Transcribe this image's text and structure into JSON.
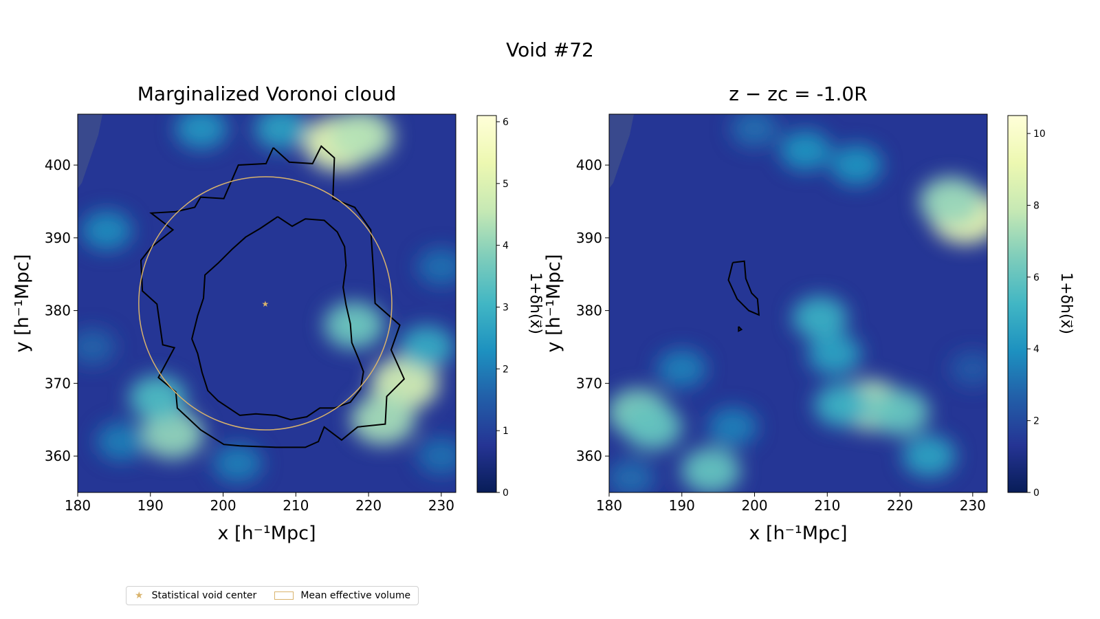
{
  "suptitle": "Void #72",
  "chart_data": [
    {
      "type": "heatmap",
      "title": "Marginalized Voronoi cloud",
      "xlabel": "x [h⁻¹Mpc]",
      "ylabel": "y [h⁻¹Mpc]",
      "xlim": [
        180,
        232
      ],
      "ylim": [
        355,
        407
      ],
      "xticks": [
        180,
        190,
        200,
        210,
        220,
        230
      ],
      "yticks": [
        360,
        370,
        380,
        390,
        400
      ],
      "colorbar": {
        "label": "1+δh(x⃗)",
        "range": [
          0,
          6.1
        ],
        "ticks": [
          0,
          1,
          2,
          3,
          4,
          5,
          6
        ]
      },
      "colormap": [
        "#081d58",
        "#253494",
        "#225ea8",
        "#1d91c0",
        "#41b6c4",
        "#7fcdbb",
        "#c7e9b4",
        "#edf8b1",
        "#ffffd9"
      ],
      "void_center": {
        "x": 205.8,
        "y": 381.0
      },
      "mean_effective_volume": {
        "cx": 205.8,
        "cy": 381.0,
        "r": 17.4
      },
      "hotspots": [
        {
          "x": 216,
          "y": 403,
          "v": 5.2
        },
        {
          "x": 219,
          "y": 404,
          "v": 4.4
        },
        {
          "x": 225,
          "y": 370,
          "v": 4.8
        },
        {
          "x": 222,
          "y": 365,
          "v": 4.2
        },
        {
          "x": 193,
          "y": 363,
          "v": 4.0
        },
        {
          "x": 191,
          "y": 368,
          "v": 3.2
        },
        {
          "x": 218,
          "y": 378,
          "v": 3.6
        },
        {
          "x": 228,
          "y": 375,
          "v": 2.8
        },
        {
          "x": 184,
          "y": 391,
          "v": 2.2
        },
        {
          "x": 197,
          "y": 405,
          "v": 2.4
        },
        {
          "x": 208,
          "y": 405,
          "v": 2.6
        },
        {
          "x": 186,
          "y": 362,
          "v": 2.0
        },
        {
          "x": 230,
          "y": 386,
          "v": 1.8
        },
        {
          "x": 202,
          "y": 359,
          "v": 2.0
        },
        {
          "x": 230,
          "y": 360,
          "v": 1.8
        },
        {
          "x": 182,
          "y": 375,
          "v": 1.6
        }
      ],
      "contours": [
        [
          [
            206.9,
            402.4
          ],
          [
            205.9,
            400.2
          ],
          [
            202.1,
            400.0
          ],
          [
            200.1,
            395.4
          ],
          [
            196.9,
            395.6
          ],
          [
            196.1,
            394.2
          ],
          [
            193.5,
            393.6
          ],
          [
            190.1,
            393.4
          ],
          [
            193.1,
            391.1
          ],
          [
            190.1,
            388.7
          ],
          [
            188.7,
            386.9
          ],
          [
            188.9,
            382.7
          ],
          [
            190.9,
            380.9
          ],
          [
            191.7,
            375.3
          ],
          [
            193.3,
            374.9
          ],
          [
            191.1,
            370.8
          ],
          [
            193.5,
            368.8
          ],
          [
            193.7,
            366.6
          ],
          [
            196.9,
            363.6
          ],
          [
            200.1,
            361.6
          ],
          [
            202.3,
            361.4
          ],
          [
            207.3,
            361.2
          ],
          [
            211.3,
            361.2
          ],
          [
            213.1,
            362.0
          ],
          [
            213.9,
            364.0
          ],
          [
            216.3,
            362.2
          ],
          [
            218.5,
            364.0
          ],
          [
            222.3,
            364.4
          ],
          [
            222.5,
            368.2
          ],
          [
            224.9,
            370.6
          ],
          [
            223.1,
            374.6
          ],
          [
            224.3,
            378.0
          ],
          [
            220.9,
            381.0
          ],
          [
            220.7,
            385.0
          ],
          [
            220.3,
            391.1
          ],
          [
            218.1,
            394.2
          ],
          [
            215.1,
            395.4
          ],
          [
            215.3,
            401.0
          ],
          [
            213.5,
            402.6
          ],
          [
            212.3,
            400.2
          ],
          [
            209.1,
            400.4
          ],
          [
            206.9,
            402.4
          ]
        ],
        [
          [
            207.5,
            392.9
          ],
          [
            205.1,
            391.3
          ],
          [
            203.1,
            390.1
          ],
          [
            201.3,
            388.5
          ],
          [
            199.3,
            386.5
          ],
          [
            197.5,
            384.9
          ],
          [
            197.3,
            381.7
          ],
          [
            196.5,
            379.3
          ],
          [
            195.7,
            376.1
          ],
          [
            196.5,
            374.1
          ],
          [
            197.1,
            371.5
          ],
          [
            197.9,
            369.0
          ],
          [
            199.3,
            367.6
          ],
          [
            201.1,
            366.4
          ],
          [
            202.3,
            365.6
          ],
          [
            204.5,
            365.8
          ],
          [
            207.3,
            365.6
          ],
          [
            209.3,
            365.0
          ],
          [
            211.5,
            365.4
          ],
          [
            213.3,
            366.6
          ],
          [
            215.3,
            366.6
          ],
          [
            217.5,
            367.4
          ],
          [
            218.9,
            369.2
          ],
          [
            219.3,
            371.6
          ],
          [
            218.7,
            373.2
          ],
          [
            217.7,
            375.6
          ],
          [
            217.5,
            378.2
          ],
          [
            216.9,
            380.8
          ],
          [
            216.5,
            383.2
          ],
          [
            216.9,
            386.2
          ],
          [
            216.7,
            388.8
          ],
          [
            215.7,
            390.8
          ],
          [
            213.9,
            392.4
          ],
          [
            211.3,
            392.6
          ],
          [
            209.5,
            391.6
          ],
          [
            207.5,
            392.9
          ]
        ]
      ]
    },
    {
      "type": "heatmap",
      "title": "z − zc = -1.0R",
      "xlabel": "x [h⁻¹Mpc]",
      "ylabel": "y [h⁻¹Mpc]",
      "xlim": [
        180,
        232
      ],
      "ylim": [
        355,
        407
      ],
      "xticks": [
        180,
        190,
        200,
        210,
        220,
        230
      ],
      "yticks": [
        360,
        370,
        380,
        390,
        400
      ],
      "colorbar": {
        "label": "1+δh(x⃗)",
        "range": [
          0,
          10.5
        ],
        "ticks": [
          0,
          2,
          4,
          6,
          8,
          10
        ]
      },
      "colormap": [
        "#081d58",
        "#253494",
        "#225ea8",
        "#1d91c0",
        "#41b6c4",
        "#7fcdbb",
        "#c7e9b4",
        "#edf8b1",
        "#ffffd9"
      ],
      "hotspots": [
        {
          "x": 229,
          "y": 393,
          "v": 9.0
        },
        {
          "x": 227,
          "y": 395,
          "v": 7.0
        },
        {
          "x": 216,
          "y": 367,
          "v": 7.5
        },
        {
          "x": 220,
          "y": 366,
          "v": 6.0
        },
        {
          "x": 212,
          "y": 367,
          "v": 5.0
        },
        {
          "x": 184,
          "y": 366,
          "v": 6.5
        },
        {
          "x": 186,
          "y": 364,
          "v": 6.0
        },
        {
          "x": 194,
          "y": 358,
          "v": 6.0
        },
        {
          "x": 209,
          "y": 379,
          "v": 5.0
        },
        {
          "x": 211,
          "y": 374,
          "v": 4.5
        },
        {
          "x": 224,
          "y": 360,
          "v": 4.5
        },
        {
          "x": 207,
          "y": 402,
          "v": 4.0
        },
        {
          "x": 214,
          "y": 400,
          "v": 4.0
        },
        {
          "x": 200,
          "y": 405,
          "v": 3.0
        },
        {
          "x": 190,
          "y": 372,
          "v": 3.5
        },
        {
          "x": 183,
          "y": 357,
          "v": 3.0
        },
        {
          "x": 230,
          "y": 372,
          "v": 2.5
        },
        {
          "x": 197,
          "y": 364,
          "v": 3.5
        }
      ],
      "contours": [
        [
          [
            197.0,
            386.6
          ],
          [
            198.6,
            386.8
          ],
          [
            198.8,
            384.4
          ],
          [
            199.6,
            382.4
          ],
          [
            200.4,
            381.6
          ],
          [
            200.6,
            379.4
          ],
          [
            199.2,
            380.0
          ],
          [
            197.6,
            381.6
          ],
          [
            196.4,
            384.2
          ],
          [
            197.0,
            386.6
          ]
        ],
        [
          [
            197.8,
            377.8
          ],
          [
            198.2,
            377.4
          ],
          [
            197.8,
            377.2
          ],
          [
            197.8,
            377.8
          ]
        ]
      ]
    }
  ],
  "legend": {
    "center_label": "Statistical void center",
    "volume_label": "Mean effective volume",
    "accent": "#d9b36c"
  }
}
